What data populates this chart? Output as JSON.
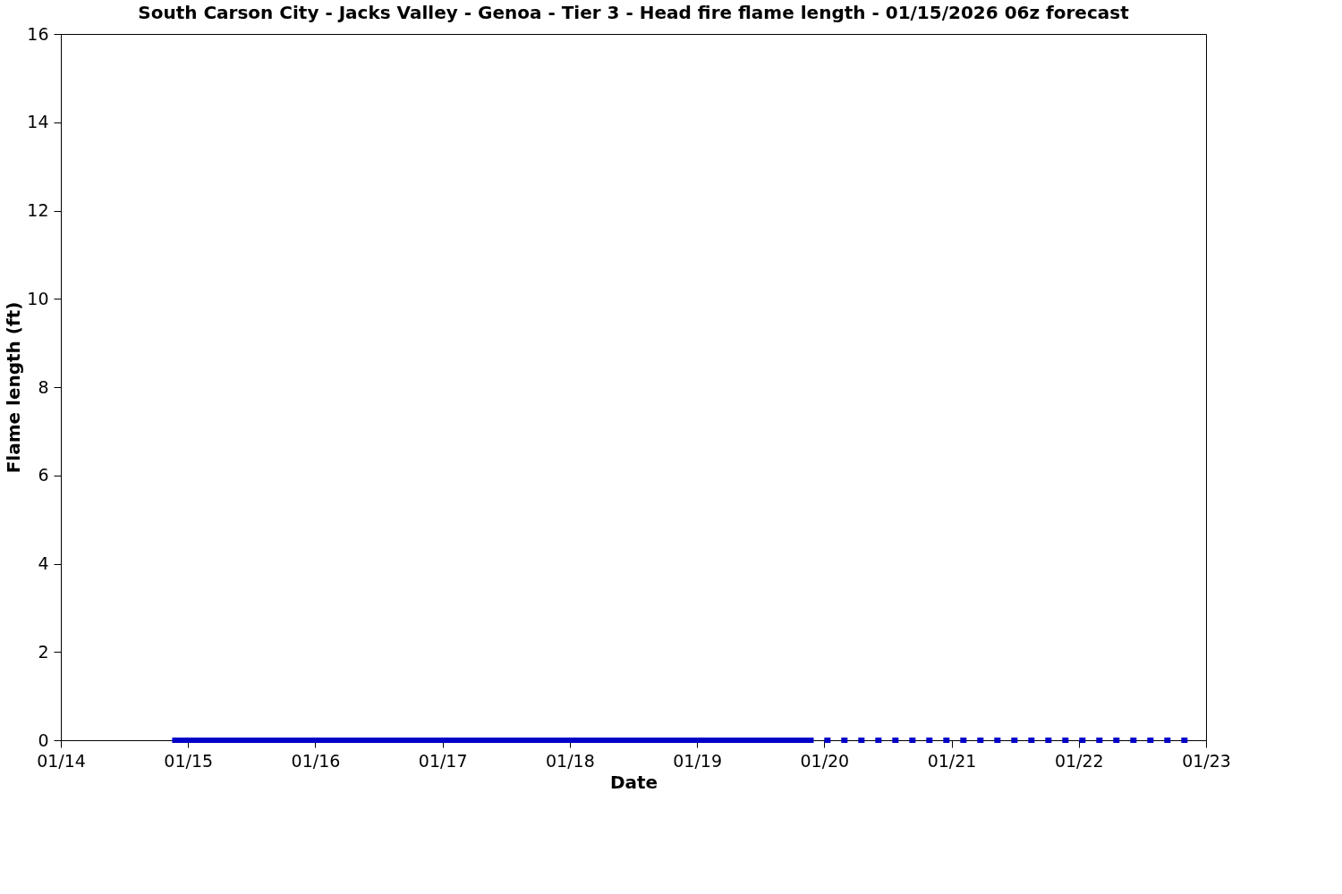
{
  "chart_data": {
    "type": "line",
    "title": "South Carson City - Jacks Valley - Genoa - Tier 3 - Head fire flame length - 01/15/2026 06z forecast",
    "xlabel": "Date",
    "ylabel": "Flame length (ft)",
    "series": [
      {
        "color": "#0000c8",
        "line_style": "solid",
        "x": [
          "2026-01-14T21:00",
          "2026-01-19T22:00"
        ],
        "values": [
          0,
          0
        ]
      },
      {
        "color": "#0000c8",
        "line_style": "dotted",
        "x": [
          "2026-01-20T00:00",
          "2026-01-22T22:00"
        ],
        "values": [
          0,
          0
        ]
      }
    ],
    "xlim": [
      "2026-01-14",
      "2026-01-23"
    ],
    "xticks": [
      {
        "value": "2026-01-14",
        "label": "01/14"
      },
      {
        "value": "2026-01-15",
        "label": "01/15"
      },
      {
        "value": "2026-01-16",
        "label": "01/16"
      },
      {
        "value": "2026-01-17",
        "label": "01/17"
      },
      {
        "value": "2026-01-18",
        "label": "01/18"
      },
      {
        "value": "2026-01-19",
        "label": "01/19"
      },
      {
        "value": "2026-01-20",
        "label": "01/20"
      },
      {
        "value": "2026-01-21",
        "label": "01/21"
      },
      {
        "value": "2026-01-22",
        "label": "01/22"
      },
      {
        "value": "2026-01-23",
        "label": "01/23"
      }
    ],
    "ylim": [
      0,
      16
    ],
    "yticks": [
      0,
      2,
      4,
      6,
      8,
      10,
      12,
      14,
      16
    ],
    "grid": false,
    "legend": false,
    "marker": "none"
  }
}
